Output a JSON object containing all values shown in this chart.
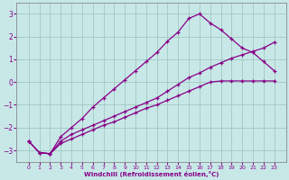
{
  "xlabel": "Windchill (Refroidissement éolien,°C)",
  "background_color": "#c8e8e8",
  "grid_color": "#a0c8c0",
  "line_color": "#880088",
  "x_data": [
    0,
    1,
    2,
    3,
    4,
    5,
    6,
    7,
    8,
    9,
    10,
    11,
    12,
    13,
    14,
    15,
    16,
    17,
    18,
    19,
    20,
    21,
    22,
    23
  ],
  "line1": [
    -2.6,
    -3.1,
    -3.15,
    -2.4,
    -2.0,
    -1.6,
    -1.1,
    -0.7,
    -0.3,
    0.1,
    0.5,
    0.9,
    1.3,
    1.8,
    2.2,
    2.8,
    3.0,
    2.6,
    2.3,
    1.9,
    1.5,
    1.3,
    0.9,
    0.5
  ],
  "line2": [
    -2.6,
    -3.1,
    -3.15,
    -2.6,
    -2.3,
    -2.1,
    -1.9,
    -1.7,
    -1.5,
    -1.3,
    -1.1,
    -0.9,
    -0.7,
    -0.4,
    -0.1,
    0.2,
    0.4,
    0.65,
    0.85,
    1.05,
    1.2,
    1.35,
    1.5,
    1.75
  ],
  "line3": [
    -2.6,
    -3.1,
    -3.15,
    -2.7,
    -2.5,
    -2.3,
    -2.1,
    -1.9,
    -1.75,
    -1.55,
    -1.35,
    -1.15,
    -1.0,
    -0.8,
    -0.6,
    -0.4,
    -0.2,
    0.0,
    0.05,
    0.05,
    0.05,
    0.05,
    0.05,
    0.05
  ],
  "ylim": [
    -3.5,
    3.5
  ],
  "yticks": [
    -3,
    -2,
    -1,
    0,
    1,
    2,
    3
  ],
  "xticks": [
    0,
    1,
    2,
    3,
    4,
    5,
    6,
    7,
    8,
    9,
    10,
    11,
    12,
    13,
    14,
    15,
    16,
    17,
    18,
    19,
    20,
    21,
    22,
    23
  ]
}
